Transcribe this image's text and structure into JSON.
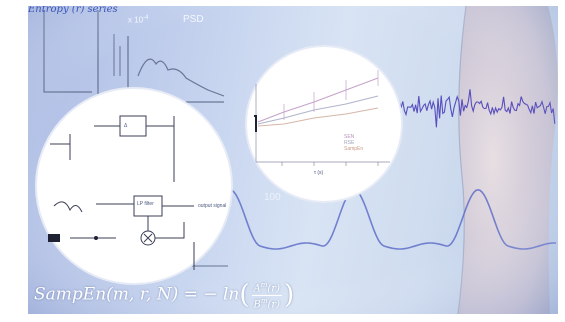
{
  "header_scribble": "Entropy (r) series",
  "psd_panel": {
    "scale_label": "x 10",
    "scale_exponent": "-4",
    "title": "PSD",
    "bottom_label": "100"
  },
  "circle_left": {
    "block_top": "Δ",
    "block_bottom": "LP filter",
    "output_label": "output signal"
  },
  "circle_right": {
    "legend": [
      "SEN",
      "RSE",
      "SampEn"
    ],
    "x_axis_label": "τ (s)"
  },
  "formula": {
    "lhs": "SampEn(m, r, N) = − ln",
    "numerator": "A",
    "numerator_sup": "m",
    "numerator_arg": "(r)",
    "denominator": "B",
    "denominator_sup": "m",
    "denominator_arg": "(r)"
  },
  "colors": {
    "signal_blue": "#4a3fb8",
    "sine_blue": "#5f6ec8",
    "background_light": "#d8e4f4",
    "formula_white": "#ffffff"
  }
}
